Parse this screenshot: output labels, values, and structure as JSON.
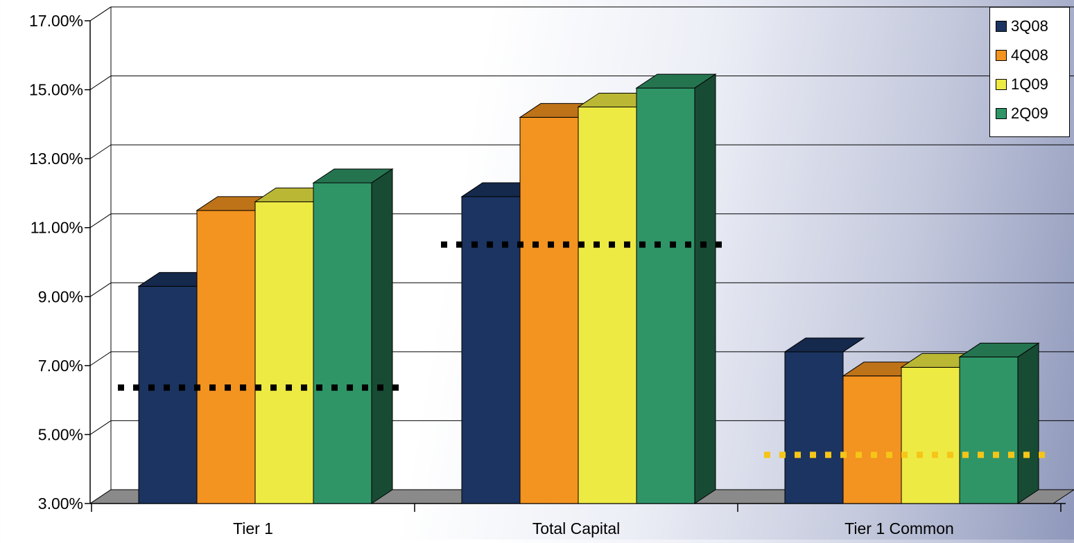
{
  "chart_data": {
    "type": "bar",
    "categories": [
      "Tier 1",
      "Total Capital",
      "Tier 1 Common"
    ],
    "series": [
      {
        "name": "3Q08",
        "color": "#1b3461",
        "values": [
          9.3,
          11.9,
          7.4
        ]
      },
      {
        "name": "4Q08",
        "color": "#f39320",
        "values": [
          11.5,
          14.2,
          6.7
        ]
      },
      {
        "name": "1Q09",
        "color": "#eeea44",
        "values": [
          11.75,
          14.5,
          6.95
        ]
      },
      {
        "name": "2Q09",
        "color": "#2f9567",
        "values": [
          12.3,
          15.05,
          7.25
        ]
      }
    ],
    "y_ticks": [
      "3.00%",
      "5.00%",
      "7.00%",
      "9.00%",
      "11.00%",
      "13.00%",
      "15.00%",
      "17.00%"
    ],
    "ylim": [
      3,
      17
    ],
    "legend_position": "top-right",
    "grid": true,
    "reference_lines": [
      {
        "category": "Tier 1",
        "value": 6.2,
        "color": "#000000"
      },
      {
        "category": "Total Capital",
        "value": 10.35,
        "color": "#000000"
      },
      {
        "category": "Tier 1 Common",
        "value": 4.25,
        "color": "#f5c518"
      }
    ]
  }
}
